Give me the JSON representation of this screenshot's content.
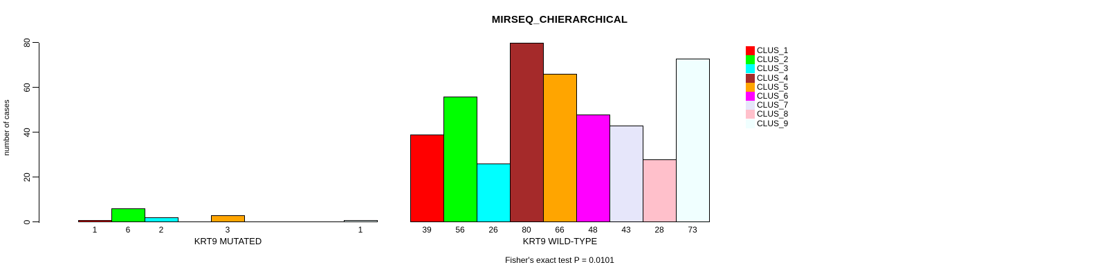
{
  "chart_data": {
    "type": "bar",
    "title": "MIRSEQ_CHIERARCHICAL",
    "ylabel": "number of cases",
    "ylim": [
      0,
      80
    ],
    "yticks": [
      0,
      20,
      40,
      60,
      80
    ],
    "grid": false,
    "legend_position": "right",
    "series": [
      {
        "name": "CLUS_1",
        "color": "#FF0000"
      },
      {
        "name": "CLUS_2",
        "color": "#00FF00"
      },
      {
        "name": "CLUS_3",
        "color": "#00FFFF"
      },
      {
        "name": "CLUS_4",
        "color": "#A52A2A"
      },
      {
        "name": "CLUS_5",
        "color": "#FFA500"
      },
      {
        "name": "CLUS_6",
        "color": "#FF00FF"
      },
      {
        "name": "CLUS_7",
        "color": "#E6E6FA"
      },
      {
        "name": "CLUS_8",
        "color": "#FFC0CB"
      },
      {
        "name": "CLUS_9",
        "color": "#F0FFFF"
      }
    ],
    "groups": [
      {
        "label": "KRT9 MUTATED",
        "values": [
          1,
          6,
          2,
          0,
          3,
          0,
          0,
          0,
          1
        ]
      },
      {
        "label": "KRT9 WILD-TYPE",
        "values": [
          39,
          56,
          26,
          80,
          66,
          48,
          43,
          28,
          73
        ]
      }
    ],
    "bar_value_labels_visible": true,
    "zero_bars_hidden": true,
    "annotation": "Fisher's exact test P = 0.0101"
  }
}
